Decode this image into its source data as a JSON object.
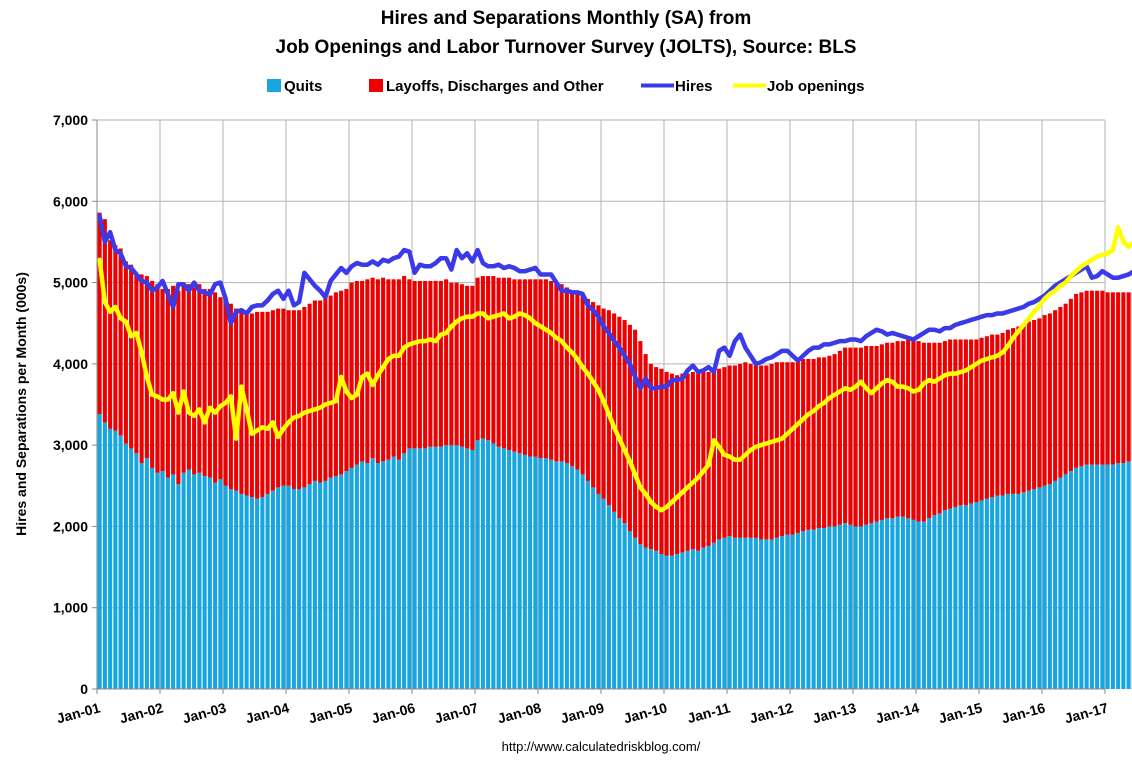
{
  "chart_data": {
    "type": "bar",
    "title": "Hires and Separations Monthly (SA) from",
    "subtitle": "Job Openings and Labor Turnover Survey (JOLTS), Source: BLS",
    "xlabel": "",
    "ylabel": "Hires and Separations per Month (000s)",
    "source_text": "http://www.calculatedriskblog.com/",
    "ylim": [
      0,
      7000
    ],
    "y_ticks": [
      0,
      1000,
      2000,
      3000,
      4000,
      5000,
      6000,
      7000
    ],
    "y_tick_labels": [
      "0",
      "1,000",
      "2,000",
      "3,000",
      "4,000",
      "5,000",
      "6,000",
      "7,000"
    ],
    "x_tick_labels": [
      "Jan-01",
      "Jan-02",
      "Jan-03",
      "Jan-04",
      "Jan-05",
      "Jan-06",
      "Jan-07",
      "Jan-08",
      "Jan-09",
      "Jan-10",
      "Jan-11",
      "Jan-12",
      "Jan-13",
      "Jan-14",
      "Jan-15",
      "Jan-16",
      "Jan-17"
    ],
    "x_start": "Jan-01",
    "x_end": "Jan-17",
    "grid": true,
    "legend_position": "top",
    "stacked": true,
    "colors": {
      "quits": "#18a6e0",
      "layoffs": "#ee0000",
      "hires": "#3a3ae8",
      "openings": "#ffff00",
      "grid": "#b3b3b3",
      "axis": "#888888"
    },
    "series": [
      {
        "name": "Quits",
        "kind": "bar",
        "values": [
          3380,
          3280,
          3200,
          3180,
          3120,
          3020,
          2960,
          2900,
          2780,
          2840,
          2720,
          2660,
          2680,
          2600,
          2640,
          2520,
          2660,
          2700,
          2640,
          2660,
          2620,
          2600,
          2540,
          2580,
          2500,
          2460,
          2440,
          2400,
          2380,
          2360,
          2340,
          2360,
          2400,
          2440,
          2480,
          2500,
          2500,
          2460,
          2460,
          2480,
          2520,
          2560,
          2540,
          2560,
          2600,
          2620,
          2640,
          2680,
          2720,
          2760,
          2800,
          2780,
          2840,
          2780,
          2800,
          2820,
          2860,
          2820,
          2900,
          2960,
          2960,
          2960,
          2960,
          2980,
          2980,
          2980,
          3000,
          3000,
          3000,
          2980,
          2960,
          2940,
          3060,
          3080,
          3060,
          3020,
          2980,
          2960,
          2940,
          2920,
          2900,
          2880,
          2860,
          2860,
          2840,
          2840,
          2820,
          2800,
          2800,
          2780,
          2740,
          2700,
          2640,
          2560,
          2480,
          2400,
          2340,
          2260,
          2180,
          2100,
          2040,
          1940,
          1860,
          1780,
          1740,
          1720,
          1700,
          1660,
          1640,
          1640,
          1660,
          1680,
          1700,
          1720,
          1700,
          1740,
          1760,
          1800,
          1840,
          1860,
          1880,
          1860,
          1860,
          1860,
          1860,
          1860,
          1840,
          1840,
          1840,
          1860,
          1880,
          1900,
          1900,
          1920,
          1940,
          1960,
          1960,
          1980,
          1980,
          2000,
          2000,
          2020,
          2040,
          2020,
          2000,
          2000,
          2020,
          2040,
          2060,
          2080,
          2100,
          2100,
          2120,
          2120,
          2100,
          2080,
          2060,
          2060,
          2100,
          2140,
          2160,
          2200,
          2220,
          2240,
          2260,
          2260,
          2280,
          2300,
          2320,
          2340,
          2360,
          2380,
          2380,
          2400,
          2400,
          2400,
          2420,
          2440,
          2460,
          2480,
          2500,
          2520,
          2560,
          2600,
          2640,
          2680,
          2720,
          2740,
          2760,
          2760,
          2760,
          2760,
          2760,
          2760,
          2780,
          2780,
          2800,
          2800,
          2820,
          2840
        ]
      },
      {
        "name": "Layoffs, Discharges and Other",
        "kind": "bar",
        "values": [
          2480,
          2500,
          2320,
          2280,
          2300,
          2240,
          2260,
          2180,
          2320,
          2240,
          2300,
          2320,
          2240,
          2320,
          2320,
          2380,
          2320,
          2280,
          2300,
          2320,
          2300,
          2320,
          2340,
          2240,
          2320,
          2280,
          2240,
          2240,
          2260,
          2260,
          2300,
          2280,
          2240,
          2220,
          2200,
          2180,
          2160,
          2200,
          2200,
          2220,
          2220,
          2220,
          2240,
          2260,
          2240,
          2260,
          2260,
          2240,
          2280,
          2260,
          2220,
          2260,
          2220,
          2260,
          2260,
          2220,
          2180,
          2220,
          2180,
          2080,
          2060,
          2060,
          2060,
          2040,
          2040,
          2040,
          2040,
          2000,
          2000,
          2000,
          2000,
          2020,
          2000,
          2000,
          2020,
          2060,
          2080,
          2100,
          2120,
          2120,
          2140,
          2160,
          2180,
          2180,
          2200,
          2200,
          2200,
          2200,
          2180,
          2160,
          2160,
          2160,
          2200,
          2240,
          2280,
          2320,
          2340,
          2400,
          2440,
          2480,
          2500,
          2540,
          2560,
          2500,
          2380,
          2280,
          2260,
          2280,
          2260,
          2240,
          2200,
          2200,
          2180,
          2180,
          2180,
          2160,
          2140,
          2120,
          2100,
          2100,
          2100,
          2120,
          2140,
          2160,
          2140,
          2120,
          2140,
          2140,
          2160,
          2160,
          2140,
          2120,
          2120,
          2120,
          2120,
          2100,
          2100,
          2100,
          2100,
          2100,
          2120,
          2140,
          2160,
          2180,
          2200,
          2200,
          2200,
          2180,
          2160,
          2160,
          2160,
          2160,
          2160,
          2160,
          2200,
          2200,
          2220,
          2200,
          2160,
          2120,
          2100,
          2080,
          2080,
          2060,
          2040,
          2040,
          2020,
          2000,
          2000,
          2000,
          2000,
          1980,
          2000,
          2020,
          2040,
          2060,
          2060,
          2080,
          2080,
          2080,
          2100,
          2100,
          2100,
          2100,
          2100,
          2120,
          2140,
          2140,
          2140,
          2140,
          2140,
          2140,
          2120,
          2120,
          2100,
          2100,
          2080,
          2080
        ]
      },
      {
        "name": "Hires",
        "kind": "line",
        "values": [
          5820,
          5500,
          5620,
          5400,
          5360,
          5200,
          5180,
          5100,
          5020,
          5000,
          4900,
          4940,
          5020,
          4860,
          4700,
          4980,
          4980,
          4900,
          5000,
          4900,
          4880,
          4850,
          4980,
          5000,
          4800,
          4500,
          4640,
          4660,
          4620,
          4700,
          4720,
          4720,
          4780,
          4860,
          4900,
          4800,
          4900,
          4720,
          4760,
          5120,
          5040,
          4960,
          4900,
          4820,
          5020,
          5100,
          5180,
          5120,
          5200,
          5240,
          5220,
          5220,
          5260,
          5220,
          5280,
          5260,
          5300,
          5320,
          5400,
          5380,
          5120,
          5220,
          5200,
          5200,
          5240,
          5300,
          5300,
          5160,
          5400,
          5300,
          5360,
          5260,
          5400,
          5240,
          5200,
          5200,
          5220,
          5180,
          5200,
          5180,
          5140,
          5140,
          5160,
          5180,
          5100,
          5100,
          5100,
          5000,
          4900,
          4900,
          4880,
          4880,
          4860,
          4720,
          4660,
          4580,
          4460,
          4380,
          4280,
          4200,
          4100,
          4000,
          3840,
          3700,
          3820,
          3700,
          3700,
          3720,
          3720,
          3800,
          3800,
          3820,
          3920,
          3980,
          3900,
          3920,
          3960,
          3900,
          4160,
          4200,
          4100,
          4280,
          4360,
          4200,
          4100,
          4000,
          4020,
          4060,
          4080,
          4120,
          4160,
          4160,
          4100,
          4040,
          4100,
          4160,
          4200,
          4200,
          4240,
          4240,
          4260,
          4280,
          4280,
          4300,
          4300,
          4280,
          4340,
          4380,
          4420,
          4400,
          4360,
          4380,
          4360,
          4340,
          4320,
          4300,
          4340,
          4380,
          4420,
          4420,
          4400,
          4440,
          4440,
          4480,
          4500,
          4520,
          4540,
          4560,
          4580,
          4600,
          4600,
          4620,
          4620,
          4640,
          4660,
          4680,
          4700,
          4740,
          4760,
          4800,
          4840,
          4900,
          4960,
          5000,
          5040,
          5080,
          5120,
          5160,
          5200,
          5060,
          5080,
          5140,
          5100,
          5060,
          5060,
          5080,
          5100,
          5140,
          5160,
          5200,
          5140,
          5140,
          5180,
          5200
        ]
      },
      {
        "name": "Job openings",
        "kind": "line",
        "values": [
          5280,
          4760,
          4640,
          4700,
          4560,
          4520,
          4340,
          4380,
          4140,
          3840,
          3620,
          3600,
          3560,
          3560,
          3640,
          3400,
          3660,
          3400,
          3360,
          3440,
          3280,
          3460,
          3400,
          3480,
          3520,
          3600,
          3080,
          3720,
          3440,
          3140,
          3180,
          3220,
          3200,
          3280,
          3100,
          3200,
          3280,
          3340,
          3360,
          3400,
          3420,
          3440,
          3460,
          3500,
          3520,
          3540,
          3840,
          3660,
          3580,
          3620,
          3840,
          3880,
          3740,
          3860,
          3960,
          4060,
          4100,
          4100,
          4200,
          4240,
          4260,
          4280,
          4280,
          4300,
          4280,
          4360,
          4380,
          4460,
          4520,
          4560,
          4580,
          4580,
          4620,
          4620,
          4560,
          4580,
          4600,
          4620,
          4560,
          4580,
          4620,
          4600,
          4560,
          4500,
          4460,
          4420,
          4380,
          4320,
          4280,
          4200,
          4140,
          4060,
          3960,
          3880,
          3780,
          3680,
          3540,
          3380,
          3220,
          3080,
          2940,
          2800,
          2640,
          2480,
          2400,
          2300,
          2240,
          2200,
          2240,
          2300,
          2360,
          2420,
          2480,
          2540,
          2600,
          2680,
          2760,
          3060,
          2980,
          2880,
          2860,
          2820,
          2820,
          2880,
          2940,
          2980,
          3000,
          3020,
          3040,
          3060,
          3080,
          3140,
          3200,
          3260,
          3320,
          3380,
          3420,
          3480,
          3520,
          3580,
          3620,
          3660,
          3700,
          3680,
          3720,
          3780,
          3700,
          3640,
          3700,
          3760,
          3800,
          3780,
          3720,
          3720,
          3700,
          3660,
          3680,
          3760,
          3800,
          3780,
          3820,
          3860,
          3880,
          3880,
          3900,
          3920,
          3960,
          4000,
          4040,
          4060,
          4080,
          4100,
          4140,
          4220,
          4320,
          4400,
          4480,
          4560,
          4640,
          4720,
          4800,
          4860,
          4900,
          4960,
          5000,
          5080,
          5140,
          5200,
          5240,
          5280,
          5320,
          5340,
          5360,
          5400,
          5680,
          5500,
          5440,
          5500,
          5460,
          5440
        ]
      }
    ]
  }
}
